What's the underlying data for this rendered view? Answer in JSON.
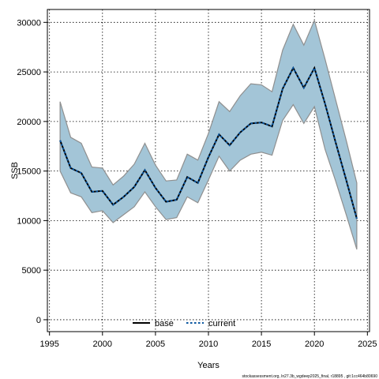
{
  "chart_data": {
    "type": "line",
    "xlabel": "Years",
    "ylabel": "SSB",
    "xlim": [
      1994.8,
      2025.2
    ],
    "ylim": [
      -1200,
      31300
    ],
    "xticks": [
      1995,
      2000,
      2005,
      2010,
      2015,
      2020,
      2025
    ],
    "yticks": [
      0,
      5000,
      10000,
      15000,
      20000,
      25000,
      30000
    ],
    "grid": true,
    "legend_position": "bottom-center",
    "x": [
      1996,
      1997,
      1998,
      1999,
      2000,
      2001,
      2002,
      2003,
      2004,
      2005,
      2006,
      2007,
      2008,
      2009,
      2010,
      2011,
      2012,
      2013,
      2014,
      2015,
      2016,
      2017,
      2018,
      2019,
      2020,
      2021,
      2022,
      2023,
      2024
    ],
    "band_upper": [
      22000,
      18400,
      17800,
      15400,
      15300,
      13600,
      14500,
      15700,
      17800,
      15600,
      14000,
      14100,
      16700,
      16100,
      18800,
      22000,
      21000,
      22600,
      23800,
      23700,
      23000,
      27200,
      29800,
      27700,
      30200,
      26300,
      22200,
      18100,
      13800
    ],
    "band_lower": [
      15000,
      12800,
      12400,
      10800,
      11000,
      9800,
      10600,
      11400,
      12900,
      11400,
      10100,
      10300,
      12400,
      11800,
      14100,
      16500,
      15000,
      16100,
      16700,
      16900,
      16600,
      20100,
      21700,
      19800,
      21500,
      17200,
      14000,
      10600,
      7100
    ],
    "series": [
      {
        "name": "base",
        "values": [
          18100,
          15300,
          14800,
          12900,
          13000,
          11600,
          12400,
          13400,
          15100,
          13300,
          11900,
          12100,
          14400,
          13800,
          16400,
          18700,
          17600,
          18900,
          19800,
          19900,
          19500,
          23300,
          25400,
          23400,
          25400,
          21800,
          17900,
          14100,
          10200
        ]
      },
      {
        "name": "current",
        "values": [
          18100,
          15300,
          14800,
          12900,
          13000,
          11600,
          12400,
          13400,
          15100,
          13300,
          11900,
          12100,
          14400,
          13800,
          16400,
          18700,
          17600,
          18900,
          19800,
          19900,
          19500,
          23300,
          25400,
          23400,
          25400,
          21800,
          17900,
          14100,
          10200
        ]
      }
    ],
    "footnote": "stockassessment.org, ln27.3b_wgdeep2025_final, r18895 , git:1cc464b80690",
    "colors": {
      "band_fill": "#a3c5d7",
      "band_edge": "#8f8f8f",
      "base": "#000000",
      "current": "#0a56a0",
      "grid": "#000000"
    }
  }
}
